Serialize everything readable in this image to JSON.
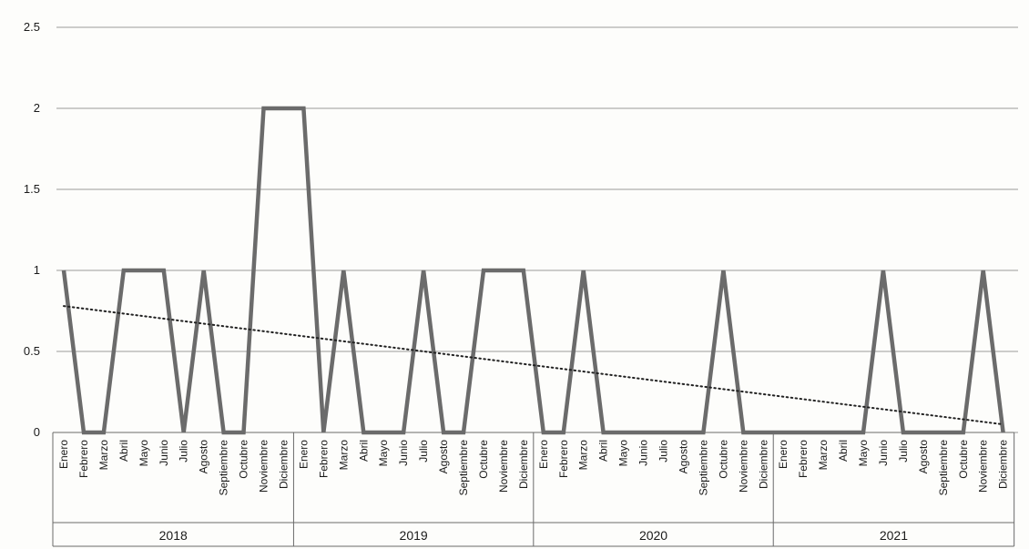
{
  "chart_data": {
    "type": "line",
    "title": "",
    "xlabel": "",
    "ylabel": "",
    "ylim": [
      0,
      2.5
    ],
    "y_ticks": [
      "0",
      "0.5",
      "1",
      "1.5",
      "2",
      "2.5"
    ],
    "grid": true,
    "legend": "none",
    "groups": [
      {
        "name": "2018",
        "categories": [
          "Enero",
          "Febrero",
          "Marzo",
          "Abril",
          "Mayo",
          "Junio",
          "Julio",
          "Agosto",
          "Septiembre",
          "Octubre",
          "Noviembre",
          "Diciembre"
        ],
        "values": [
          1,
          0,
          0,
          1,
          1,
          1,
          0,
          1,
          0,
          0,
          2,
          2
        ]
      },
      {
        "name": "2019",
        "categories": [
          "Enero",
          "Febrero",
          "Marzo",
          "Abril",
          "Mayo",
          "Junio",
          "Julio",
          "Agosto",
          "Septiembre",
          "Octubre",
          "Noviembre",
          "Diciembre"
        ],
        "values": [
          2,
          0,
          1,
          0,
          0,
          0,
          1,
          0,
          0,
          1,
          1,
          1
        ]
      },
      {
        "name": "2020",
        "categories": [
          "Enero",
          "Febrero",
          "Marzo",
          "Abril",
          "Mayo",
          "Junio",
          "Julio",
          "Agosto",
          "Septiembre",
          "Octubre",
          "Noviembre",
          "Diciembre"
        ],
        "values": [
          0,
          0,
          1,
          0,
          0,
          0,
          0,
          0,
          0,
          1,
          0,
          0
        ]
      },
      {
        "name": "2021",
        "categories": [
          "Enero",
          "Febrero",
          "Marzo",
          "Abril",
          "Mayo",
          "Junio",
          "Julio",
          "Agosto",
          "Septiembre",
          "Octubre",
          "Noviembre",
          "Diciembre"
        ],
        "values": [
          0,
          0,
          0,
          0,
          0,
          1,
          0,
          0,
          0,
          0,
          1,
          0
        ]
      }
    ],
    "trendline": {
      "type": "linear",
      "style": "dotted",
      "start_value": 0.78,
      "end_value": 0.05
    },
    "colors": {
      "series": "#6b6b6b",
      "trend": "#222222",
      "grid": "#9a9a9a"
    }
  }
}
